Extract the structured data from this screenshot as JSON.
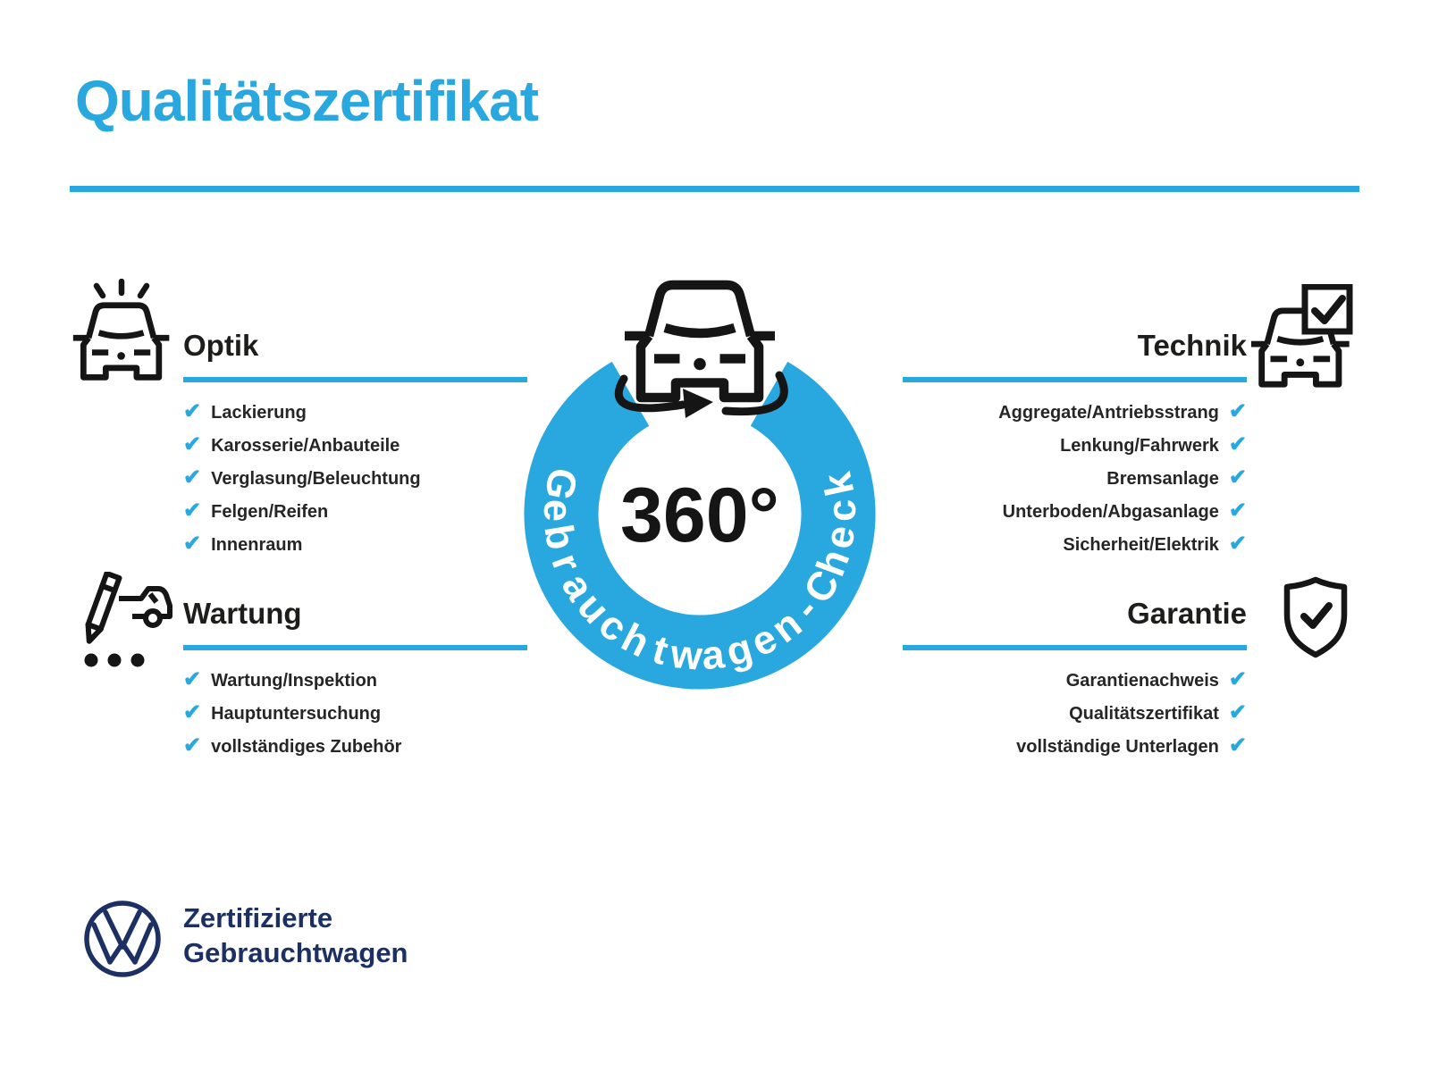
{
  "title": "Qualitätszertifikat",
  "badge": {
    "degrees": "360°",
    "ring_text": "Gebrauchtwagen-Check"
  },
  "sections": {
    "optik": {
      "heading": "Optik",
      "items": [
        "Lackierung",
        "Karosserie/Anbauteile",
        "Verglasung/Beleuchtung",
        "Felgen/Reifen",
        "Innenraum"
      ]
    },
    "wartung": {
      "heading": "Wartung",
      "items": [
        "Wartung/Inspektion",
        "Hauptuntersuchung",
        "vollständiges Zubehör"
      ]
    },
    "technik": {
      "heading": "Technik",
      "items": [
        "Aggregate/Antriebsstrang",
        "Lenkung/Fahrwerk",
        "Bremsanlage",
        "Unterboden/Abgasanlage",
        "Sicherheit/Elektrik"
      ]
    },
    "garantie": {
      "heading": "Garantie",
      "items": [
        "Garantienachweis",
        "Qualitätszertifikat",
        "vollständige Unterlagen"
      ]
    }
  },
  "footer": {
    "brand_line1": "Zertifizierte",
    "brand_line2": "Gebrauchtwagen"
  },
  "check_icon_glyph": "✔",
  "icons": {
    "optik": "car-shine-icon",
    "wartung": "pencil-car-icon",
    "technik": "car-checkbox-icon",
    "garantie": "shield-check-icon",
    "badge": "car-360-rotation-icon",
    "footer": "vw-logo-icon"
  },
  "colors": {
    "blue": "#29a8e0",
    "navy": "#1c3064",
    "ink": "#1d1d1b",
    "text": "#262626"
  }
}
